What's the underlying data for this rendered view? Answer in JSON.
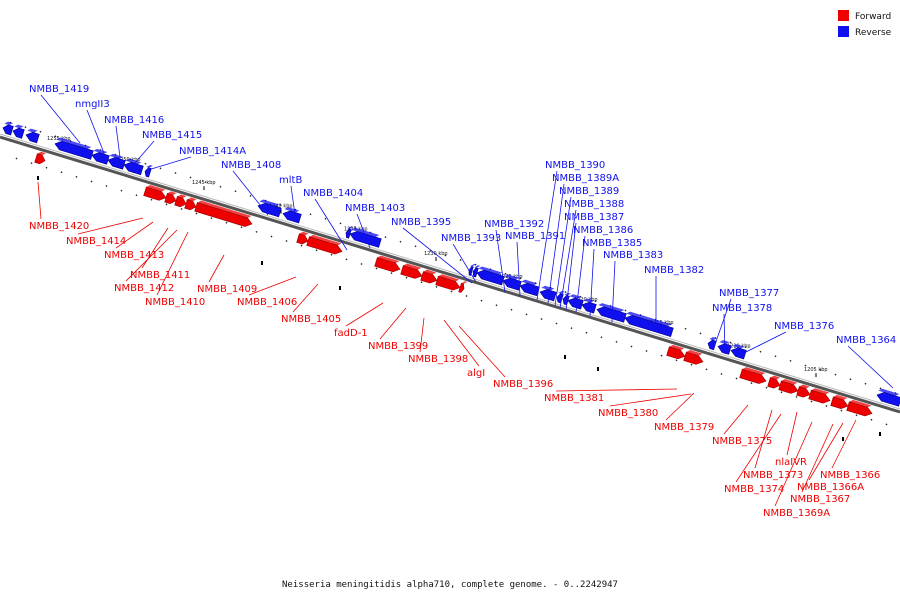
{
  "colors": {
    "forward": "#ee0000",
    "reverse": "#1010ee",
    "axis": "#777777"
  },
  "legend": [
    {
      "label": "Forward",
      "strand": "forward"
    },
    {
      "label": "Reverse",
      "strand": "reverse"
    }
  ],
  "caption": "Neisseria meningitidis alpha710, complete genome. - 0..2242947",
  "scale_labels": [
    "1255 kbp",
    "1250 kbp",
    "1245 kbp",
    "1240 kbp",
    "1235 kbp",
    "1230 kbp",
    "1225 kbp",
    "1220 kbp",
    "1215 kbp",
    "1210 kbp",
    "1205 kbp"
  ],
  "genes": [
    {
      "name": "NMBB_1419",
      "strand": "reverse"
    },
    {
      "name": "nmgII3",
      "strand": "reverse"
    },
    {
      "name": "NMBB_1416",
      "strand": "reverse"
    },
    {
      "name": "NMBB_1415",
      "strand": "reverse"
    },
    {
      "name": "NMBB_1414A",
      "strand": "reverse"
    },
    {
      "name": "NMBB_1408",
      "strand": "reverse"
    },
    {
      "name": "mltB",
      "strand": "reverse"
    },
    {
      "name": "NMBB_1404",
      "strand": "reverse"
    },
    {
      "name": "NMBB_1403",
      "strand": "reverse"
    },
    {
      "name": "NMBB_1395",
      "strand": "reverse"
    },
    {
      "name": "NMBB_1393",
      "strand": "reverse"
    },
    {
      "name": "NMBB_1392",
      "strand": "reverse"
    },
    {
      "name": "NMBB_1391",
      "strand": "reverse"
    },
    {
      "name": "NMBB_1390",
      "strand": "reverse"
    },
    {
      "name": "NMBB_1389A",
      "strand": "reverse"
    },
    {
      "name": "NMBB_1389",
      "strand": "reverse"
    },
    {
      "name": "NMBB_1388",
      "strand": "reverse"
    },
    {
      "name": "NMBB_1387",
      "strand": "reverse"
    },
    {
      "name": "NMBB_1386",
      "strand": "reverse"
    },
    {
      "name": "NMBB_1385",
      "strand": "reverse"
    },
    {
      "name": "NMBB_1383",
      "strand": "reverse"
    },
    {
      "name": "NMBB_1382",
      "strand": "reverse"
    },
    {
      "name": "NMBB_1377",
      "strand": "reverse"
    },
    {
      "name": "NMBB_1378",
      "strand": "reverse"
    },
    {
      "name": "NMBB_1376",
      "strand": "reverse"
    },
    {
      "name": "NMBB_1364",
      "strand": "reverse"
    },
    {
      "name": "NMBB_1420",
      "strand": "forward"
    },
    {
      "name": "NMBB_1414",
      "strand": "forward"
    },
    {
      "name": "NMBB_1413",
      "strand": "forward"
    },
    {
      "name": "NMBB_1411",
      "strand": "forward"
    },
    {
      "name": "NMBB_1412",
      "strand": "forward"
    },
    {
      "name": "NMBB_1410",
      "strand": "forward"
    },
    {
      "name": "NMBB_1409",
      "strand": "forward"
    },
    {
      "name": "NMBB_1406",
      "strand": "forward"
    },
    {
      "name": "NMBB_1405",
      "strand": "forward"
    },
    {
      "name": "fadD-1",
      "strand": "forward"
    },
    {
      "name": "NMBB_1399",
      "strand": "forward"
    },
    {
      "name": "NMBB_1398",
      "strand": "forward"
    },
    {
      "name": "algI",
      "strand": "forward"
    },
    {
      "name": "NMBB_1396",
      "strand": "forward"
    },
    {
      "name": "NMBB_1381",
      "strand": "forward"
    },
    {
      "name": "NMBB_1380",
      "strand": "forward"
    },
    {
      "name": "NMBB_1379",
      "strand": "forward"
    },
    {
      "name": "NMBB_1375",
      "strand": "forward"
    },
    {
      "name": "NMBB_1373",
      "strand": "forward"
    },
    {
      "name": "nlaIVR",
      "strand": "forward"
    },
    {
      "name": "NMBB_1374",
      "strand": "forward"
    },
    {
      "name": "NMBB_1366",
      "strand": "forward"
    },
    {
      "name": "NMBB_1366A",
      "strand": "forward"
    },
    {
      "name": "NMBB_1367",
      "strand": "forward"
    },
    {
      "name": "NMBB_1369A",
      "strand": "forward"
    }
  ]
}
